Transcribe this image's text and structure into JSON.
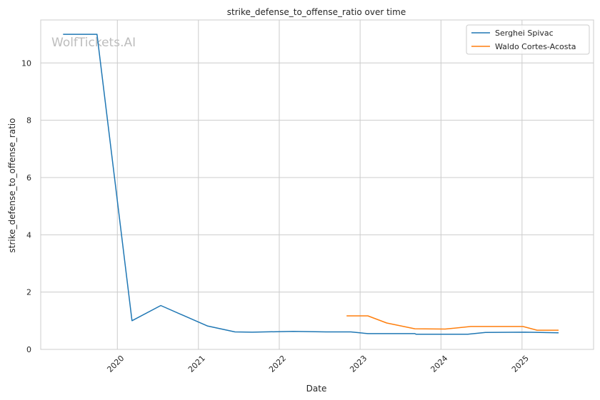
{
  "chart_data": {
    "type": "line",
    "title": "strike_defense_to_offense_ratio over time",
    "xlabel": "Date",
    "ylabel": "strike_defense_to_offense_ratio",
    "watermark": "WolfTickets.AI",
    "xlim": [
      "2019-01-20",
      "2025-11-20"
    ],
    "ylim": [
      0,
      11.5
    ],
    "x_ticks": [
      "2020",
      "2021",
      "2022",
      "2023",
      "2024",
      "2025"
    ],
    "y_ticks": [
      "0",
      "2",
      "4",
      "6",
      "8",
      "10"
    ],
    "grid": true,
    "legend_position": "top-right",
    "series": [
      {
        "name": "Serghei Spivac",
        "color": "#1f77b4",
        "points": [
          [
            "2019-05-01",
            11.0
          ],
          [
            "2019-10-01",
            11.0
          ],
          [
            "2020-03-07",
            1.0
          ],
          [
            "2020-07-15",
            1.53
          ],
          [
            "2021-02-10",
            0.82
          ],
          [
            "2021-06-15",
            0.61
          ],
          [
            "2021-09-01",
            0.6
          ],
          [
            "2022-03-05",
            0.63
          ],
          [
            "2022-08-01",
            0.61
          ],
          [
            "2022-11-20",
            0.61
          ],
          [
            "2023-02-05",
            0.55
          ],
          [
            "2023-09-05",
            0.55
          ],
          [
            "2023-09-10",
            0.53
          ],
          [
            "2024-05-01",
            0.53
          ],
          [
            "2024-07-20",
            0.59
          ],
          [
            "2025-01-15",
            0.6
          ],
          [
            "2025-06-15",
            0.58
          ]
        ]
      },
      {
        "name": "Waldo Cortes-Acosta",
        "color": "#ff7f0e",
        "points": [
          [
            "2022-11-01",
            1.17
          ],
          [
            "2023-02-05",
            1.17
          ],
          [
            "2023-05-01",
            0.92
          ],
          [
            "2023-09-05",
            0.72
          ],
          [
            "2024-01-20",
            0.71
          ],
          [
            "2024-05-15",
            0.8
          ],
          [
            "2024-09-01",
            0.8
          ],
          [
            "2025-01-05",
            0.8
          ],
          [
            "2025-03-10",
            0.67
          ],
          [
            "2025-06-15",
            0.67
          ]
        ]
      }
    ]
  }
}
